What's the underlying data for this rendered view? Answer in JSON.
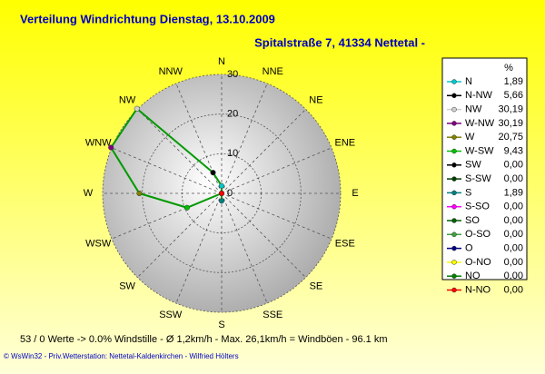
{
  "chart_data": {
    "type": "radar",
    "title": "Verteilung Windrichtung   Dienstag, 13.10.2009",
    "subtitle": "Spitalstraße 7, 41334 Nettetal -",
    "categories": [
      "N",
      "NNE",
      "NE",
      "ENE",
      "E",
      "ESE",
      "SE",
      "SSE",
      "S",
      "SSW",
      "SW",
      "WSW",
      "W",
      "WNW",
      "NW",
      "NNW"
    ],
    "rlim": [
      0,
      30
    ],
    "rticks": [
      0,
      10,
      20,
      30
    ],
    "line_color": "#009900",
    "legend_header": "%",
    "points": [
      {
        "name": "N",
        "color": "#00c8c8",
        "value": 1.89,
        "value_label": "1,89"
      },
      {
        "name": "N-NW",
        "color": "#000000",
        "value": 5.66,
        "value_label": "5,66"
      },
      {
        "name": "NW",
        "color": "#d0d0d0",
        "value": 30.19,
        "value_label": "30,19"
      },
      {
        "name": "W-NW",
        "color": "#800080",
        "value": 30.19,
        "value_label": "30,19"
      },
      {
        "name": "W",
        "color": "#808000",
        "value": 20.75,
        "value_label": "20,75"
      },
      {
        "name": "W-SW",
        "color": "#00c000",
        "value": 9.43,
        "value_label": "9,43"
      },
      {
        "name": "SW",
        "color": "#000000",
        "value": 0,
        "value_label": "0,00"
      },
      {
        "name": "S-SW",
        "color": "#004000",
        "value": 0,
        "value_label": "0,00"
      },
      {
        "name": "S",
        "color": "#008080",
        "value": 1.89,
        "value_label": "1,89"
      },
      {
        "name": "S-SO",
        "color": "#ff00ff",
        "value": 0,
        "value_label": "0,00"
      },
      {
        "name": "SO",
        "color": "#006000",
        "value": 0,
        "value_label": "0,00"
      },
      {
        "name": "O-SO",
        "color": "#40a040",
        "value": 0,
        "value_label": "0,00"
      },
      {
        "name": "O",
        "color": "#000080",
        "value": 0,
        "value_label": "0,00"
      },
      {
        "name": "O-NO",
        "color": "#ffff00",
        "value": 0,
        "value_label": "0,00"
      },
      {
        "name": "NO",
        "color": "#008000",
        "value": 0,
        "value_label": "0,00"
      },
      {
        "name": "N-NO",
        "color": "#ff0000",
        "value": 0,
        "value_label": "0,00"
      }
    ]
  },
  "footer": {
    "stats": "53 / 0 Werte  -> 0.0% Windstille   -   Ø 1,2km/h   -   Max. 26,1km/h = Windböen   -   96.1 km",
    "credits": "© WsWin32  -  Priv.Wetterstation: Nettetal-Kaldenkirchen  -  Wilfried Hölters"
  }
}
